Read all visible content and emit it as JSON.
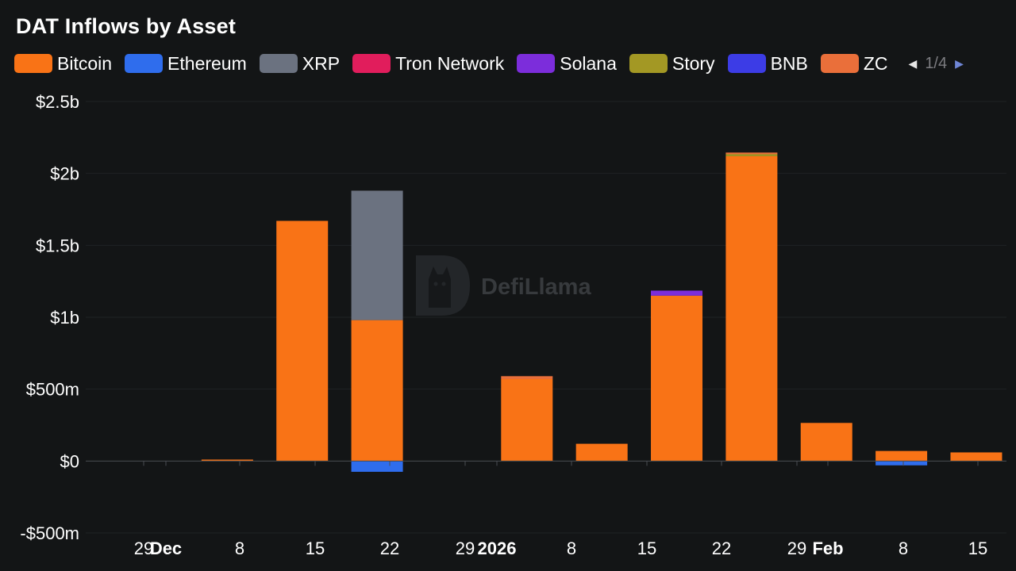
{
  "chart_data": {
    "type": "bar",
    "stacked": true,
    "title": "DAT Inflows by Asset",
    "legend": {
      "placement": "top-left",
      "page": "1/4",
      "items": [
        {
          "name": "Bitcoin",
          "color": "#f97316"
        },
        {
          "name": "Ethereum",
          "color": "#2f6ded"
        },
        {
          "name": "XRP",
          "color": "#6b7280"
        },
        {
          "name": "Tron Network",
          "color": "#e11d5c"
        },
        {
          "name": "Solana",
          "color": "#7c2ddb"
        },
        {
          "name": "Story",
          "color": "#a39824"
        },
        {
          "name": "BNB",
          "color": "#3c3ce6"
        },
        {
          "name": "ZC",
          "color": "#ea6f3a"
        }
      ]
    },
    "y_axis": {
      "ylim": [
        -500000000,
        2500000000
      ],
      "ticks": [
        {
          "value": 2500000000,
          "label": "$2.5b"
        },
        {
          "value": 2000000000,
          "label": "$2b"
        },
        {
          "value": 1500000000,
          "label": "$1.5b"
        },
        {
          "value": 1000000000,
          "label": "$1b"
        },
        {
          "value": 500000000,
          "label": "$500m"
        },
        {
          "value": 0,
          "label": "$0"
        },
        {
          "value": -500000000,
          "label": "-$500m"
        }
      ]
    },
    "x_axis": {
      "tick_labels": [
        {
          "text": "29",
          "bold": false
        },
        {
          "text": "Dec",
          "bold": true
        },
        {
          "text": "8",
          "bold": false
        },
        {
          "text": "15",
          "bold": false
        },
        {
          "text": "22",
          "bold": false
        },
        {
          "text": "29",
          "bold": false
        },
        {
          "text": "2026",
          "bold": true
        },
        {
          "text": "8",
          "bold": false
        },
        {
          "text": "15",
          "bold": false
        },
        {
          "text": "22",
          "bold": false
        },
        {
          "text": "29",
          "bold": false
        },
        {
          "text": "Feb",
          "bold": true
        },
        {
          "text": "8",
          "bold": false
        },
        {
          "text": "15",
          "bold": false
        }
      ]
    },
    "grid": true,
    "weeks": [
      {
        "segments": []
      },
      {
        "segments": [
          {
            "asset": "Bitcoin",
            "value": 10000000
          }
        ]
      },
      {
        "segments": [
          {
            "asset": "Bitcoin",
            "value": 1670000000
          }
        ]
      },
      {
        "segments": [
          {
            "asset": "Bitcoin",
            "value": 980000000
          },
          {
            "asset": "XRP",
            "value": 900000000
          },
          {
            "asset": "Ethereum",
            "value": -75000000
          }
        ]
      },
      {
        "segments": []
      },
      {
        "segments": [
          {
            "asset": "Bitcoin",
            "value": 570000000
          },
          {
            "asset": "ZC",
            "value": 20000000
          }
        ]
      },
      {
        "segments": [
          {
            "asset": "Bitcoin",
            "value": 120000000
          }
        ]
      },
      {
        "segments": [
          {
            "asset": "Bitcoin",
            "value": 1150000000
          },
          {
            "asset": "Solana",
            "value": 35000000
          }
        ]
      },
      {
        "segments": [
          {
            "asset": "Bitcoin",
            "value": 2120000000
          },
          {
            "asset": "Story",
            "value": 15000000
          },
          {
            "asset": "ZC",
            "value": 10000000
          }
        ]
      },
      {
        "segments": [
          {
            "asset": "Bitcoin",
            "value": 265000000
          }
        ]
      },
      {
        "segments": [
          {
            "asset": "Bitcoin",
            "value": 70000000
          },
          {
            "asset": "Ethereum",
            "value": -30000000
          }
        ]
      },
      {
        "segments": [
          {
            "asset": "Bitcoin",
            "value": 60000000
          }
        ]
      }
    ]
  },
  "watermark": {
    "text": "DefiLlama",
    "icon": "llama-logo-icon"
  }
}
